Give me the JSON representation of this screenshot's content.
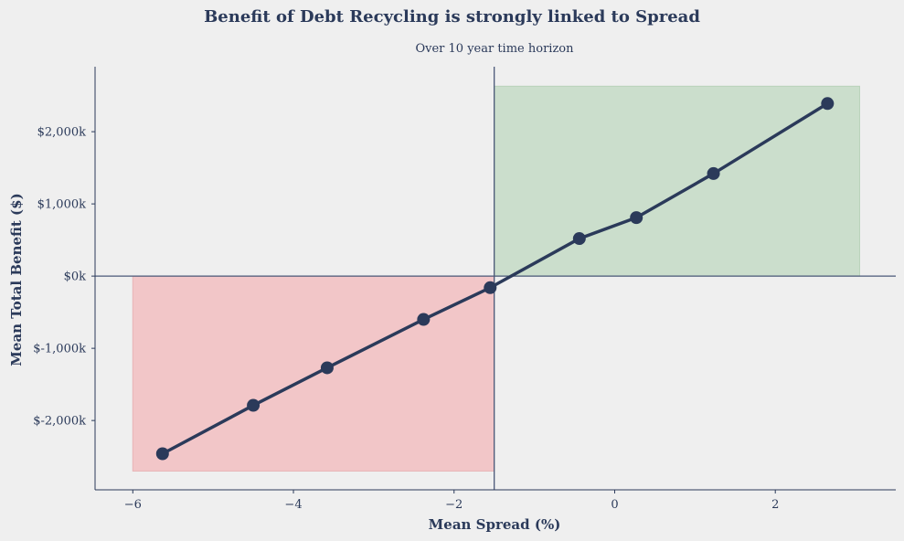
{
  "chart_data": {
    "type": "line",
    "title": "Benefit of Debt Recycling is strongly linked to Spread",
    "subtitle": "Over 10 year time horizon",
    "xlabel": "Mean Spread (%)",
    "ylabel": "Mean Total Benefit ($)",
    "xlim": [
      -6.47,
      3.5
    ],
    "ylim": [
      -2960,
      2900
    ],
    "x_ticks": [
      -6,
      -4,
      -2,
      0,
      2
    ],
    "x_tick_labels": [
      "−6",
      "−4",
      "−2",
      "0",
      "2"
    ],
    "y_ticks": [
      -2000,
      -1000,
      0,
      1000,
      2000
    ],
    "y_tick_labels": [
      "$-2,000k",
      "$-1,000k",
      "$0k",
      "$1,000k",
      "$2,000k"
    ],
    "grid": false,
    "reference_lines": {
      "x": -1.5,
      "y": 0
    },
    "shaded_regions": [
      {
        "x": [
          -6.0,
          -1.5
        ],
        "y": [
          -2700,
          0
        ],
        "color": "#f2c6c8",
        "edge": "#e8b4b6"
      },
      {
        "x": [
          -1.5,
          3.05
        ],
        "y": [
          0,
          2630
        ],
        "color": "#cbdecc",
        "edge": "#b9d2ba"
      }
    ],
    "series": [
      {
        "x": [
          -5.63,
          -4.5,
          -3.58,
          -2.38,
          -1.55,
          -0.44,
          0.27,
          1.23,
          2.65
        ],
        "y": [
          -2460,
          -1790,
          -1270,
          -600,
          -160,
          520,
          810,
          1420,
          2390
        ],
        "color": "#2b3a5a"
      }
    ]
  }
}
